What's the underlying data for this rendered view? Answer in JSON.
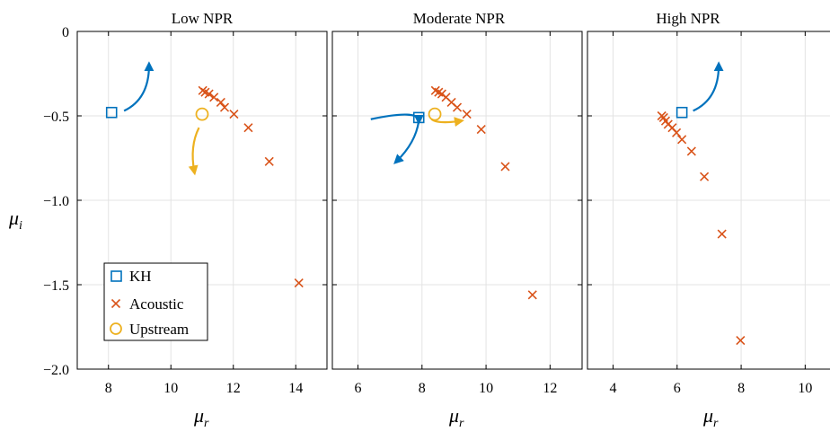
{
  "chart_data": [
    {
      "type": "scatter",
      "title": "Low NPR",
      "xlabel": "μ",
      "xlabel_sub": "r",
      "ylabel": "μ",
      "ylabel_sub": "i",
      "xlim": [
        7,
        15
      ],
      "ylim": [
        -2.0,
        0
      ],
      "xticks": [
        8,
        10,
        12,
        14
      ],
      "xtick_labels": [
        "8",
        "10",
        "12",
        "14"
      ],
      "yticks": [
        0,
        -0.5,
        -1.0,
        -1.5,
        -2.0
      ],
      "ytick_labels": [
        "0",
        "−0.5",
        "−1.0",
        "−1.5",
        "−2.0"
      ],
      "grid": true,
      "legend": "bottom-left",
      "series": [
        {
          "name": "KH",
          "marker": "square",
          "color": "#0072BD",
          "points": [
            [
              8.1,
              -0.48
            ]
          ]
        },
        {
          "name": "Acoustic",
          "marker": "x",
          "color": "#D95319",
          "points": [
            [
              11.02,
              -0.35
            ],
            [
              11.1,
              -0.36
            ],
            [
              11.22,
              -0.37
            ],
            [
              11.38,
              -0.39
            ],
            [
              11.6,
              -0.42
            ],
            [
              11.72,
              -0.45
            ],
            [
              12.02,
              -0.49
            ],
            [
              12.48,
              -0.57
            ],
            [
              13.15,
              -0.77
            ],
            [
              14.1,
              -1.49
            ]
          ]
        },
        {
          "name": "Upstream",
          "marker": "circle",
          "color": "#EDB120",
          "points": [
            [
              11.0,
              -0.49
            ]
          ]
        }
      ],
      "arrows": [
        {
          "color": "#0072BD",
          "from": [
            8.5,
            -0.47
          ],
          "ctrl": [
            9.3,
            -0.4
          ],
          "to": [
            9.3,
            -0.2
          ]
        },
        {
          "color": "#EDB120",
          "from": [
            10.9,
            -0.57
          ],
          "ctrl": [
            10.6,
            -0.68
          ],
          "to": [
            10.75,
            -0.83
          ]
        }
      ]
    },
    {
      "type": "scatter",
      "title": "Moderate NPR",
      "xlabel": "μ",
      "xlabel_sub": "r",
      "xlim": [
        5.2,
        13
      ],
      "ylim": [
        -2.0,
        0
      ],
      "xticks": [
        6,
        8,
        10,
        12
      ],
      "xtick_labels": [
        "6",
        "8",
        "10",
        "12"
      ],
      "yticks": [
        0,
        -0.5,
        -1.0,
        -1.5,
        -2.0
      ],
      "grid": true,
      "series": [
        {
          "name": "KH",
          "marker": "square",
          "color": "#0072BD",
          "points": [
            [
              7.9,
              -0.51
            ]
          ]
        },
        {
          "name": "Acoustic",
          "marker": "x",
          "color": "#D95319",
          "points": [
            [
              8.42,
              -0.35
            ],
            [
              8.52,
              -0.36
            ],
            [
              8.62,
              -0.37
            ],
            [
              8.75,
              -0.39
            ],
            [
              8.92,
              -0.42
            ],
            [
              9.1,
              -0.45
            ],
            [
              9.4,
              -0.49
            ],
            [
              9.85,
              -0.58
            ],
            [
              10.6,
              -0.8
            ],
            [
              11.45,
              -1.56
            ]
          ]
        },
        {
          "name": "Upstream",
          "marker": "circle",
          "color": "#EDB120",
          "points": [
            [
              8.4,
              -0.49
            ]
          ]
        }
      ],
      "arrows": [
        {
          "color": "#0072BD",
          "from": [
            6.4,
            -0.52
          ],
          "ctrl": [
            7.9,
            -0.46
          ],
          "to": [
            7.9,
            -0.53
          ]
        },
        {
          "color": "#0072BD",
          "from": [
            7.9,
            -0.53
          ],
          "ctrl": [
            7.8,
            -0.66
          ],
          "to": [
            7.2,
            -0.77
          ]
        },
        {
          "color": "#EDB120",
          "from": [
            8.3,
            -0.52
          ],
          "ctrl": [
            8.5,
            -0.55
          ],
          "to": [
            9.2,
            -0.53
          ]
        }
      ]
    },
    {
      "type": "scatter",
      "title": "High NPR",
      "xlabel": "μ",
      "xlabel_sub": "r",
      "xlim": [
        3.2,
        11.0
      ],
      "ylim": [
        -2.0,
        0
      ],
      "xticks": [
        4,
        6,
        8,
        10
      ],
      "xtick_labels": [
        "4",
        "6",
        "8",
        "10"
      ],
      "yticks": [
        0,
        -0.5,
        -1.0,
        -1.5,
        -2.0
      ],
      "grid": true,
      "series": [
        {
          "name": "KH",
          "marker": "square",
          "color": "#0072BD",
          "points": [
            [
              6.15,
              -0.48
            ]
          ]
        },
        {
          "name": "Acoustic",
          "marker": "x",
          "color": "#D95319",
          "points": [
            [
              5.52,
              -0.5
            ],
            [
              5.58,
              -0.51
            ],
            [
              5.64,
              -0.53
            ],
            [
              5.72,
              -0.55
            ],
            [
              5.85,
              -0.57
            ],
            [
              5.98,
              -0.6
            ],
            [
              6.15,
              -0.64
            ],
            [
              6.45,
              -0.71
            ],
            [
              6.85,
              -0.86
            ],
            [
              7.4,
              -1.2
            ],
            [
              7.98,
              -1.83
            ]
          ]
        }
      ],
      "arrows": [
        {
          "color": "#0072BD",
          "from": [
            6.5,
            -0.47
          ],
          "ctrl": [
            7.3,
            -0.4
          ],
          "to": [
            7.3,
            -0.2
          ]
        }
      ]
    }
  ]
}
